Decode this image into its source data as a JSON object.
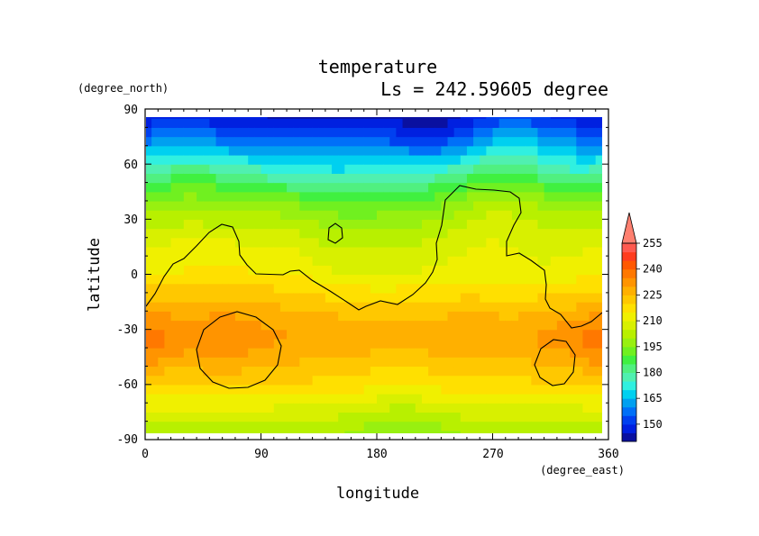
{
  "chart_data": {
    "type": "heatmap",
    "title": "temperature",
    "subtitle": "Ls = 242.59605 degree",
    "xlabel": "longitude",
    "ylabel": "latitude",
    "x_units": "(degree_east)",
    "y_units": "(degree_north)",
    "xlim": [
      0,
      360
    ],
    "ylim": [
      -90,
      90
    ],
    "x_ticks": [
      0,
      90,
      180,
      270,
      360
    ],
    "y_ticks": [
      90,
      60,
      30,
      0,
      -30,
      -60,
      -90
    ],
    "colorbar": {
      "levels": [
        140,
        145,
        150,
        155,
        160,
        165,
        170,
        175,
        180,
        185,
        190,
        195,
        200,
        205,
        210,
        215,
        220,
        225,
        230,
        235,
        240,
        245,
        250,
        255,
        260
      ],
      "labels": [
        150,
        165,
        180,
        195,
        210,
        225,
        240,
        255
      ],
      "extend": "max",
      "colors": [
        "#0a10a0",
        "#0020e0",
        "#0040f0",
        "#0070f8",
        "#00a0f0",
        "#00d0f0",
        "#30f0e0",
        "#50f0b0",
        "#50f080",
        "#40f040",
        "#70f020",
        "#98f010",
        "#b8f000",
        "#d8f000",
        "#f0f000",
        "#ffe000",
        "#ffc800",
        "#ffb000",
        "#ff9400",
        "#ff7800",
        "#ff5800",
        "#ff3c1e",
        "#ff5a50",
        "#ff8070"
      ]
    },
    "latitude_profile": {
      "lat": [
        85,
        80,
        75,
        70,
        65,
        60,
        55,
        50,
        45,
        40,
        35,
        30,
        25,
        20,
        15,
        10,
        5,
        0,
        -5,
        -10,
        -15,
        -20,
        -25,
        -30,
        -35,
        -40,
        -45,
        -50,
        -55,
        -60,
        -65,
        -70,
        -75,
        -80,
        -85
      ],
      "temperature": [
        145,
        150,
        155,
        160,
        166,
        172,
        178,
        184,
        190,
        195,
        199,
        203,
        206,
        209,
        211,
        213,
        214,
        216,
        219,
        222,
        224,
        227,
        229,
        230,
        231,
        229,
        227,
        224,
        222,
        219,
        216,
        212,
        208,
        204,
        201
      ]
    }
  }
}
